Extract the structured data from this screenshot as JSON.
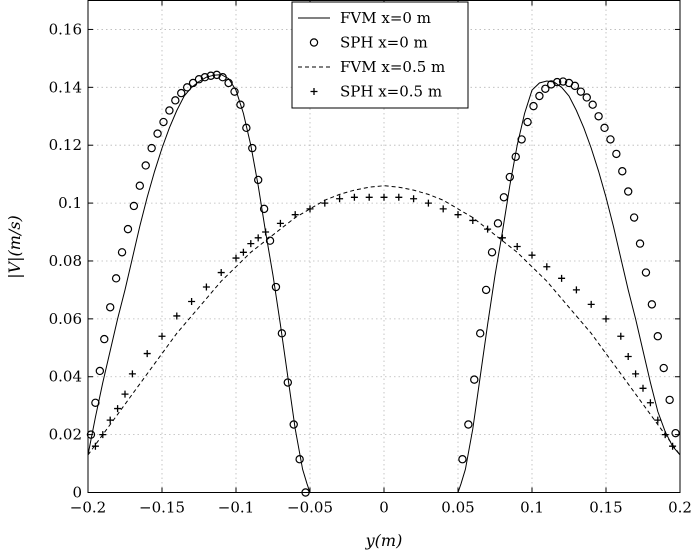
{
  "chart_data": {
    "type": "line",
    "xlabel": "y(m)",
    "ylabel": "|V|(m/s)",
    "xlim": [
      -0.2,
      0.2
    ],
    "ylim": [
      0,
      0.17
    ],
    "grid": true,
    "legend_position": "top-center",
    "x_ticks": [
      "−0.2",
      "−0.15",
      "−0.1",
      "−0.05",
      "0",
      "0.05",
      "0.1",
      "0.15",
      "0.2"
    ],
    "y_ticks": [
      "0",
      "0.02",
      "0.04",
      "0.06",
      "0.08",
      "0.1",
      "0.12",
      "0.14",
      "0.16"
    ],
    "x_tick_values": [
      -0.2,
      -0.15,
      -0.1,
      -0.05,
      0,
      0.05,
      0.1,
      0.15,
      0.2
    ],
    "y_tick_values": [
      0,
      0.02,
      0.04,
      0.06,
      0.08,
      0.1,
      0.12,
      0.14,
      0.16
    ],
    "legend": [
      {
        "label": "FVM  x=0 m",
        "style": "solid-line"
      },
      {
        "label": "SPH x=0 m",
        "style": "circle"
      },
      {
        "label": "FVM x=0.5 m",
        "style": "dashed-line"
      },
      {
        "label": "SPH x=0.5 m",
        "style": "plus"
      }
    ],
    "series": [
      {
        "name": "FVM  x=0 m",
        "style": "solid-line",
        "x": [
          -0.2,
          -0.195,
          -0.19,
          -0.185,
          -0.18,
          -0.175,
          -0.17,
          -0.165,
          -0.16,
          -0.155,
          -0.15,
          -0.145,
          -0.14,
          -0.135,
          -0.13,
          -0.125,
          -0.12,
          -0.115,
          -0.11,
          -0.105,
          -0.1,
          -0.095,
          -0.09,
          -0.085,
          -0.08,
          -0.075,
          -0.07,
          -0.065,
          -0.06,
          -0.055,
          -0.052,
          -0.05
        ],
        "y": [
          0.013,
          0.026,
          0.038,
          0.049,
          0.06,
          0.07,
          0.081,
          0.092,
          0.102,
          0.111,
          0.119,
          0.126,
          0.132,
          0.137,
          0.14,
          0.142,
          0.1435,
          0.1442,
          0.1444,
          0.143,
          0.139,
          0.131,
          0.12,
          0.106,
          0.09,
          0.075,
          0.058,
          0.04,
          0.022,
          0.008,
          0.003,
          0.0
        ]
      },
      {
        "name": "FVM  x=0 m (right)",
        "style": "solid-line",
        "x": [
          0.05,
          0.052,
          0.055,
          0.06,
          0.065,
          0.07,
          0.075,
          0.08,
          0.085,
          0.09,
          0.095,
          0.1,
          0.105,
          0.11,
          0.115,
          0.12,
          0.125,
          0.13,
          0.135,
          0.14,
          0.145,
          0.15,
          0.155,
          0.16,
          0.165,
          0.17,
          0.175,
          0.18,
          0.185,
          0.19,
          0.195,
          0.2
        ],
        "y": [
          0.0,
          0.003,
          0.008,
          0.022,
          0.04,
          0.058,
          0.075,
          0.09,
          0.106,
          0.12,
          0.131,
          0.139,
          0.1415,
          0.1422,
          0.1418,
          0.14,
          0.137,
          0.132,
          0.126,
          0.119,
          0.111,
          0.102,
          0.092,
          0.081,
          0.07,
          0.06,
          0.049,
          0.038,
          0.028,
          0.021,
          0.016,
          0.013
        ]
      },
      {
        "name": "FVM x=0.5 m",
        "style": "dashed-line",
        "x": [
          -0.2,
          -0.19,
          -0.18,
          -0.17,
          -0.16,
          -0.15,
          -0.14,
          -0.13,
          -0.12,
          -0.11,
          -0.1,
          -0.09,
          -0.08,
          -0.07,
          -0.06,
          -0.05,
          -0.04,
          -0.03,
          -0.02,
          -0.01,
          0,
          0.01,
          0.02,
          0.03,
          0.04,
          0.05,
          0.06,
          0.07,
          0.08,
          0.09,
          0.1,
          0.11,
          0.12,
          0.13,
          0.14,
          0.15,
          0.16,
          0.17,
          0.18,
          0.19,
          0.2
        ],
        "y": [
          0.013,
          0.02,
          0.027,
          0.034,
          0.041,
          0.048,
          0.055,
          0.061,
          0.067,
          0.073,
          0.078,
          0.083,
          0.087,
          0.091,
          0.095,
          0.098,
          0.101,
          0.103,
          0.1045,
          0.1055,
          0.106,
          0.1055,
          0.1045,
          0.103,
          0.101,
          0.098,
          0.095,
          0.091,
          0.087,
          0.083,
          0.078,
          0.073,
          0.067,
          0.061,
          0.055,
          0.048,
          0.041,
          0.034,
          0.027,
          0.02,
          0.013
        ]
      },
      {
        "name": "SPH x=0 m",
        "style": "circle",
        "x": [
          -0.198,
          -0.195,
          -0.192,
          -0.189,
          -0.185,
          -0.181,
          -0.177,
          -0.173,
          -0.169,
          -0.165,
          -0.161,
          -0.157,
          -0.153,
          -0.149,
          -0.145,
          -0.141,
          -0.137,
          -0.133,
          -0.129,
          -0.125,
          -0.121,
          -0.117,
          -0.113,
          -0.109,
          -0.105,
          -0.101,
          -0.097,
          -0.093,
          -0.089,
          -0.085,
          -0.081,
          -0.077,
          -0.073,
          -0.069,
          -0.065,
          -0.061,
          -0.057,
          -0.053,
          0.053,
          0.057,
          0.061,
          0.065,
          0.069,
          0.073,
          0.077,
          0.081,
          0.085,
          0.089,
          0.093,
          0.097,
          0.101,
          0.105,
          0.109,
          0.113,
          0.117,
          0.121,
          0.125,
          0.129,
          0.133,
          0.137,
          0.141,
          0.145,
          0.149,
          0.153,
          0.157,
          0.161,
          0.165,
          0.169,
          0.173,
          0.177,
          0.181,
          0.185,
          0.189,
          0.193,
          0.197
        ],
        "y": [
          0.02,
          0.031,
          0.042,
          0.053,
          0.064,
          0.074,
          0.083,
          0.091,
          0.099,
          0.106,
          0.113,
          0.119,
          0.124,
          0.128,
          0.132,
          0.1355,
          0.138,
          0.14,
          0.1415,
          0.1428,
          0.1435,
          0.144,
          0.1443,
          0.1435,
          0.1415,
          0.1385,
          0.134,
          0.126,
          0.119,
          0.108,
          0.098,
          0.087,
          0.071,
          0.055,
          0.038,
          0.0235,
          0.0115,
          0.0,
          0.0115,
          0.0235,
          0.039,
          0.055,
          0.07,
          0.083,
          0.093,
          0.102,
          0.109,
          0.116,
          0.122,
          0.128,
          0.1335,
          0.137,
          0.1395,
          0.141,
          0.1418,
          0.142,
          0.1415,
          0.1405,
          0.1385,
          0.1365,
          0.134,
          0.13,
          0.126,
          0.122,
          0.117,
          0.111,
          0.104,
          0.095,
          0.086,
          0.076,
          0.065,
          0.054,
          0.043,
          0.032,
          0.0205
        ]
      },
      {
        "name": "SPH x=0.5 m",
        "style": "plus",
        "x": [
          -0.195,
          -0.19,
          -0.185,
          -0.18,
          -0.175,
          -0.17,
          -0.16,
          -0.15,
          -0.14,
          -0.13,
          -0.12,
          -0.11,
          -0.1,
          -0.095,
          -0.09,
          -0.085,
          -0.08,
          -0.07,
          -0.06,
          -0.05,
          -0.04,
          -0.03,
          -0.02,
          -0.01,
          0,
          0.01,
          0.02,
          0.03,
          0.04,
          0.05,
          0.06,
          0.07,
          0.08,
          0.09,
          0.1,
          0.11,
          0.12,
          0.13,
          0.14,
          0.15,
          0.16,
          0.165,
          0.17,
          0.175,
          0.18,
          0.185,
          0.19,
          0.195
        ],
        "y": [
          0.016,
          0.02,
          0.025,
          0.029,
          0.034,
          0.041,
          0.048,
          0.054,
          0.061,
          0.066,
          0.071,
          0.076,
          0.081,
          0.083,
          0.086,
          0.088,
          0.09,
          0.093,
          0.096,
          0.098,
          0.1,
          0.1015,
          0.102,
          0.102,
          0.102,
          0.102,
          0.1015,
          0.1,
          0.098,
          0.096,
          0.094,
          0.091,
          0.088,
          0.085,
          0.082,
          0.078,
          0.074,
          0.07,
          0.065,
          0.06,
          0.054,
          0.047,
          0.041,
          0.036,
          0.031,
          0.025,
          0.02,
          0.016
        ]
      }
    ]
  }
}
